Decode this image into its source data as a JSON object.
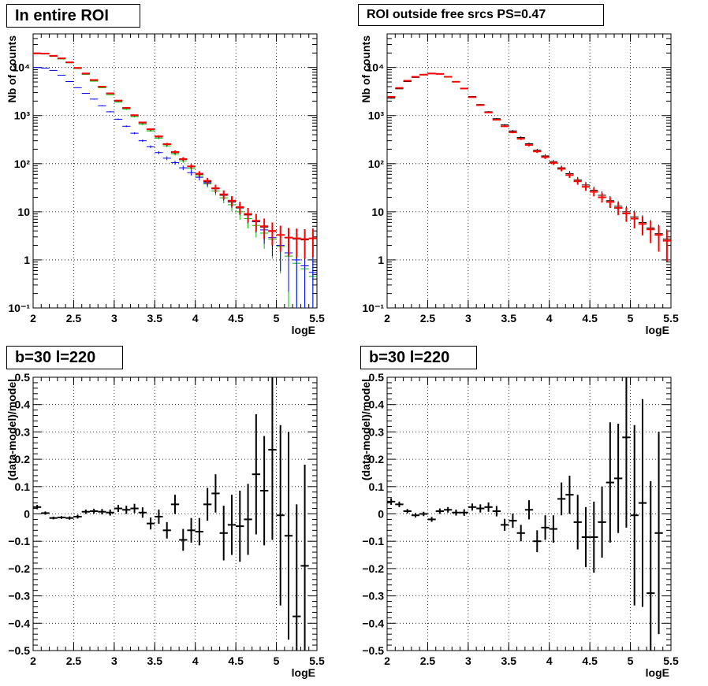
{
  "chart_data": [
    {
      "type": "scatter",
      "title": "In entire ROI",
      "xlabel": "logE",
      "ylabel": "Nb of counts",
      "log_y": true,
      "xlim": [
        2,
        5.5
      ],
      "ylim": [
        0.1,
        50000
      ],
      "x_ticks": [
        "2",
        "2.5",
        "3",
        "3.5",
        "4",
        "4.5",
        "5",
        "5.5"
      ],
      "y_ticks": [
        "10⁻¹",
        "1",
        "10",
        "10²",
        "10³",
        "10⁴"
      ],
      "grid": true,
      "colors": {
        "data": "#000000",
        "model": "#ff0000",
        "secondary": "#0000ff",
        "tertiary": "#00bb00"
      },
      "series": [
        {
          "x": [
            2.05,
            2.15,
            2.25,
            2.35,
            2.45,
            2.55,
            2.65,
            2.75,
            2.85,
            2.95,
            3.05,
            3.15,
            3.25,
            3.35,
            3.45,
            3.55,
            3.65,
            3.75,
            3.85,
            3.95,
            4.05,
            4.15,
            4.25,
            4.35,
            4.45,
            4.55,
            4.65,
            4.75,
            4.85,
            4.95,
            5.05,
            5.15,
            5.25,
            5.35,
            5.45
          ],
          "y": [
            19200,
            19000,
            17000,
            15000,
            12500,
            9500,
            7200,
            5200,
            3800,
            2700,
            1900,
            1350,
            950,
            660,
            480,
            340,
            235,
            160,
            115,
            80,
            56,
            38,
            27,
            19.5,
            14,
            10,
            7.2,
            5.2,
            3.6,
            2.7,
            1.9,
            1.2,
            0.85,
            0.65,
            0.45
          ]
        },
        {
          "x": [
            2.05,
            2.15,
            2.25,
            2.35,
            2.45,
            2.55,
            2.65,
            2.75,
            2.85,
            2.95,
            3.05,
            3.15,
            3.25,
            3.35,
            3.45,
            3.55,
            3.65,
            3.75,
            3.85,
            3.95,
            4.05,
            4.15,
            4.25,
            4.35,
            4.45,
            4.55,
            4.65,
            4.75,
            4.85,
            4.95,
            5.05,
            5.15,
            5.25,
            5.35,
            5.45
          ],
          "y": [
            10000,
            9700,
            8700,
            6900,
            5100,
            3800,
            2900,
            2200,
            1600,
            1200,
            840,
            600,
            430,
            300,
            225,
            170,
            130,
            105,
            82,
            65,
            52,
            40,
            31,
            23,
            17,
            12.5,
            9,
            6.2,
            4.2,
            2.9,
            2,
            1.4,
            1,
            0.75,
            0.55
          ]
        },
        {
          "x": [
            2.05,
            2.15,
            2.25,
            2.35,
            2.45,
            2.55,
            2.65,
            2.75,
            2.85,
            2.95,
            3.05,
            3.15,
            3.25,
            3.35,
            3.45,
            3.55,
            3.65,
            3.75,
            3.85,
            3.95,
            4.05,
            4.15,
            4.25,
            4.35,
            4.45,
            4.55,
            4.65,
            4.75,
            4.85,
            4.95,
            5.05,
            5.15,
            5.25,
            5.35,
            5.45
          ],
          "y": [
            19500,
            19200,
            17200,
            15300,
            12800,
            9700,
            7400,
            5400,
            3950,
            2850,
            2000,
            1420,
            1000,
            700,
            510,
            360,
            250,
            170,
            122,
            86,
            60,
            42,
            30,
            22,
            16,
            12,
            8.6,
            6.3,
            4.8,
            3.9,
            3.3,
            2.9,
            2.7,
            2.6,
            2.8
          ]
        },
        {
          "x": [
            2.05,
            2.15,
            2.25,
            2.35,
            2.45,
            2.55,
            2.65,
            2.75,
            2.85,
            2.95,
            3.05,
            3.15,
            3.25,
            3.35,
            3.45,
            3.55,
            3.65,
            3.75,
            3.85,
            3.95,
            4.05,
            4.15,
            4.25,
            4.35,
            4.45,
            4.55,
            4.65,
            4.75,
            4.85,
            4.95,
            5.05,
            5.15,
            5.25,
            5.35,
            5.45
          ],
          "y": [
            19700,
            19500,
            17500,
            15500,
            12800,
            9800,
            7500,
            5500,
            4000,
            2900,
            2050,
            1450,
            1020,
            720,
            520,
            370,
            255,
            175,
            125,
            88,
            62,
            44,
            31,
            23,
            17,
            12.5,
            9,
            6.5,
            5,
            4,
            3.3,
            2.9,
            2.8,
            2.7,
            2.8
          ]
        }
      ]
    },
    {
      "type": "scatter",
      "title": "ROI outside free srcs PS=0.47",
      "xlabel": "logE",
      "ylabel": "Nb of counts",
      "log_y": true,
      "xlim": [
        2,
        5.5
      ],
      "ylim": [
        0.1,
        50000
      ],
      "x_ticks": [
        "2",
        "2.5",
        "3",
        "3.5",
        "4",
        "4.5",
        "5",
        "5.5"
      ],
      "y_ticks": [
        "10⁻¹",
        "1",
        "10",
        "10²",
        "10³",
        "10⁴"
      ],
      "grid": true,
      "colors": {
        "data": "#000000",
        "model": "#ff0000"
      },
      "series": [
        {
          "x": [
            2.05,
            2.15,
            2.25,
            2.35,
            2.45,
            2.55,
            2.65,
            2.75,
            2.85,
            2.95,
            3.05,
            3.15,
            3.25,
            3.35,
            3.45,
            3.55,
            3.65,
            3.75,
            3.85,
            3.95,
            4.05,
            4.15,
            4.25,
            4.35,
            4.45,
            4.55,
            4.65,
            4.75,
            4.85,
            4.95,
            5.05,
            5.15,
            5.25,
            5.35,
            5.45
          ],
          "y": [
            2300,
            3600,
            5100,
            6200,
            7000,
            7400,
            7300,
            6400,
            5100,
            3700,
            2500,
            1700,
            1200,
            860,
            640,
            480,
            350,
            260,
            190,
            145,
            110,
            82,
            62,
            46,
            36,
            28,
            22,
            17,
            13,
            10,
            7.8,
            6,
            4.6,
            3.5,
            2.7
          ]
        },
        {
          "x": [
            2.05,
            2.15,
            2.25,
            2.35,
            2.45,
            2.55,
            2.65,
            2.75,
            2.85,
            2.95,
            3.05,
            3.15,
            3.25,
            3.35,
            3.45,
            3.55,
            3.65,
            3.75,
            3.85,
            3.95,
            4.05,
            4.15,
            4.25,
            4.35,
            4.45,
            4.55,
            4.65,
            4.75,
            4.85,
            4.95,
            5.05,
            5.15,
            5.25,
            5.35,
            5.45
          ],
          "y": [
            2450,
            3750,
            5300,
            6400,
            7100,
            7500,
            7350,
            6400,
            5050,
            3650,
            2420,
            1650,
            1160,
            820,
            600,
            450,
            330,
            245,
            180,
            137,
            104,
            78,
            58,
            43,
            33,
            26,
            20,
            16,
            12,
            9.2,
            7.2,
            5.6,
            4.3,
            3.3,
            2.5
          ]
        }
      ]
    },
    {
      "type": "scatter",
      "title": "b=30 l=220",
      "xlabel": "logE",
      "ylabel": "(data-model)/model",
      "xlim": [
        2,
        5.5
      ],
      "ylim": [
        -0.5,
        0.5
      ],
      "x_ticks": [
        "2",
        "2.5",
        "3",
        "3.5",
        "4",
        "4.5",
        "5",
        "5.5"
      ],
      "y_ticks": [
        "−0.5",
        "−0.4",
        "−0.3",
        "−0.2",
        "−0.1",
        "0",
        "0.1",
        "0.2",
        "0.3",
        "0.4",
        "0.5"
      ],
      "grid": true,
      "colors": {
        "data": "#000000"
      },
      "series": [
        {
          "x": [
            2.05,
            2.15,
            2.25,
            2.35,
            2.45,
            2.55,
            2.65,
            2.75,
            2.85,
            2.95,
            3.05,
            3.15,
            3.25,
            3.35,
            3.45,
            3.55,
            3.65,
            3.75,
            3.85,
            3.95,
            4.05,
            4.15,
            4.25,
            4.35,
            4.45,
            4.55,
            4.65,
            4.75,
            4.85,
            4.95,
            5.05,
            5.15,
            5.25,
            5.35
          ],
          "y": [
            0.025,
            0.003,
            -0.015,
            -0.013,
            -0.015,
            -0.01,
            0.008,
            0.01,
            0.008,
            0.005,
            0.02,
            0.015,
            0.02,
            0.005,
            -0.035,
            -0.01,
            -0.06,
            0.035,
            -0.095,
            -0.06,
            -0.065,
            0.035,
            0.075,
            -0.07,
            -0.04,
            -0.045,
            -0.02,
            0.145,
            0.085,
            0.235,
            -0.005,
            -0.08,
            -0.375,
            -0.19
          ],
          "err": [
            0.008,
            0.006,
            0.005,
            0.005,
            0.006,
            0.007,
            0.008,
            0.009,
            0.01,
            0.011,
            0.013,
            0.015,
            0.017,
            0.019,
            0.022,
            0.026,
            0.03,
            0.035,
            0.04,
            0.045,
            0.05,
            0.06,
            0.07,
            0.1,
            0.11,
            0.13,
            0.13,
            0.22,
            0.2,
            0.33,
            0.33,
            0.38,
            0.41,
            0.37
          ]
        }
      ]
    },
    {
      "type": "scatter",
      "title": "b=30 l=220",
      "xlabel": "logE",
      "ylabel": "(data-model)/model",
      "xlim": [
        2,
        5.5
      ],
      "ylim": [
        -0.5,
        0.5
      ],
      "x_ticks": [
        "2",
        "2.5",
        "3",
        "3.5",
        "4",
        "4.5",
        "5",
        "5.5"
      ],
      "y_ticks": [
        "−0.5",
        "−0.4",
        "−0.3",
        "−0.2",
        "−0.1",
        "0",
        "0.1",
        "0.2",
        "0.3",
        "0.4",
        "0.5"
      ],
      "grid": true,
      "colors": {
        "data": "#000000"
      },
      "series": [
        {
          "x": [
            2.05,
            2.15,
            2.25,
            2.35,
            2.45,
            2.55,
            2.65,
            2.75,
            2.85,
            2.95,
            3.05,
            3.15,
            3.25,
            3.35,
            3.45,
            3.55,
            3.65,
            3.75,
            3.85,
            3.95,
            4.05,
            4.15,
            4.25,
            4.35,
            4.45,
            4.55,
            4.65,
            4.75,
            4.85,
            4.95,
            5.05,
            5.15,
            5.25,
            5.35
          ],
          "y": [
            0.045,
            0.035,
            0.01,
            -0.005,
            0,
            -0.02,
            0.01,
            0.015,
            0.005,
            0.005,
            0.025,
            0.02,
            0.025,
            0.01,
            -0.04,
            -0.025,
            -0.07,
            0.015,
            -0.1,
            -0.05,
            -0.055,
            0.055,
            0.07,
            -0.03,
            -0.085,
            -0.085,
            -0.03,
            0.115,
            0.13,
            0.28,
            -0.005,
            0.04,
            -0.29,
            -0.07
          ],
          "err": [
            0.012,
            0.01,
            0.008,
            0.008,
            0.008,
            0.009,
            0.01,
            0.01,
            0.011,
            0.012,
            0.013,
            0.015,
            0.017,
            0.019,
            0.022,
            0.026,
            0.03,
            0.035,
            0.04,
            0.045,
            0.05,
            0.06,
            0.07,
            0.1,
            0.11,
            0.13,
            0.13,
            0.22,
            0.2,
            0.33,
            0.33,
            0.38,
            0.41,
            0.37
          ]
        }
      ]
    }
  ]
}
